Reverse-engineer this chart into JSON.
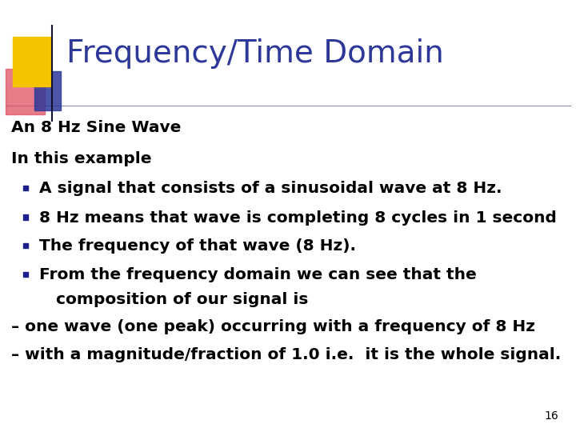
{
  "title": "Frequency/Time Domain",
  "title_color": "#2E3899",
  "title_fontsize": 28,
  "background_color": "#FFFFFF",
  "slide_number": "16",
  "body_lines": [
    {
      "text": "An 8 Hz Sine Wave",
      "bullet": false
    },
    {
      "text": "In this example",
      "bullet": false
    },
    {
      "text": "A signal that consists of a sinusoidal wave at 8 Hz.",
      "bullet": true
    },
    {
      "text": "8 Hz means that wave is completing 8 cycles in 1 second",
      "bullet": true
    },
    {
      "text": "The frequency of that wave (8 Hz).",
      "bullet": true
    },
    {
      "text": "From the frequency domain we can see that the",
      "bullet": true
    },
    {
      "text": "   composition of our signal is",
      "bullet": false,
      "extra_indent": true
    },
    {
      "text": "– one wave (one peak) occurring with a frequency of 8 Hz",
      "bullet": false
    },
    {
      "text": "– with a magnitude/fraction of 1.0 i.e.  it is the whole signal.",
      "bullet": false
    }
  ],
  "body_fontsize": 14.5,
  "body_color": "#000000",
  "bullet_color": "#1F1F8F",
  "header_line_color": "#8888BB",
  "logo_yellow": "#F5C400",
  "logo_red": "#E05060",
  "logo_blue": "#2E3899",
  "logo_red_blur": true
}
